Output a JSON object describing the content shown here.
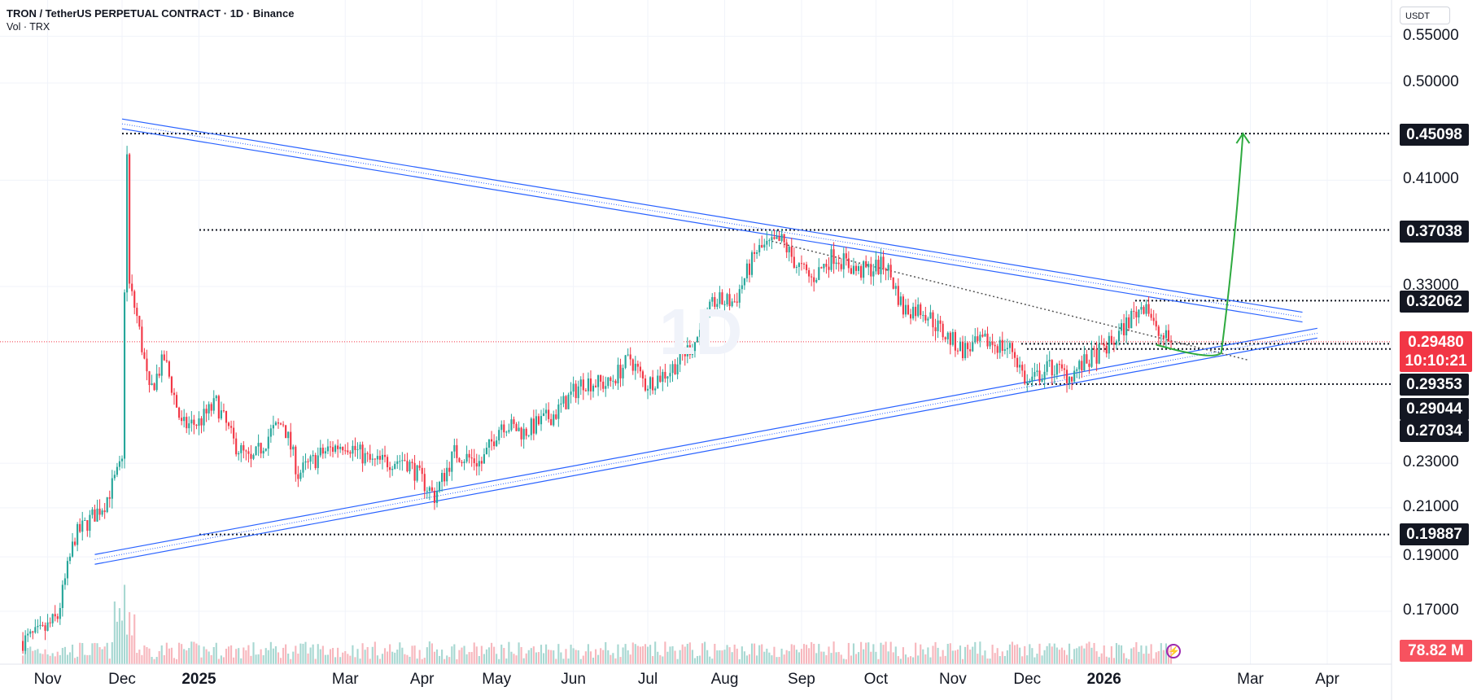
{
  "header": {
    "symbol": "TRON / TetherUS PERPETUAL CONTRACT · 1D · Binance",
    "volume_label": "Vol · TRX"
  },
  "watermark": "1D",
  "currency_button": "USDT",
  "last_price": {
    "value": "0.29480",
    "countdown": "10:10:21"
  },
  "last_volume": "78.82 M",
  "level_labels": [
    "0.45098",
    "0.37038",
    "0.32062",
    "0.29353",
    "0.29044",
    "0.27034",
    "0.19887"
  ],
  "colors": {
    "up": "#26a69a",
    "down": "#f23645",
    "trendline": "#2962ff",
    "arrow": "#2eaa3f",
    "level": "#131722"
  },
  "icons": {
    "alert": "flash-icon"
  },
  "chart_data": {
    "type": "candlestick",
    "yscale": "log",
    "y_ticks": [
      "0.55000",
      "0.50000",
      "0.41000",
      "0.33000",
      "0.23000",
      "0.21000",
      "0.19000",
      "0.17000"
    ],
    "x_ticks": [
      {
        "label": "Nov",
        "date": "2024-11-01"
      },
      {
        "label": "Dec",
        "date": "2024-12-01"
      },
      {
        "label": "2025",
        "date": "2025-01-01",
        "bold": true
      },
      {
        "label": "Mar",
        "date": "2025-03-01"
      },
      {
        "label": "Apr",
        "date": "2025-04-01"
      },
      {
        "label": "May",
        "date": "2025-05-01"
      },
      {
        "label": "Jun",
        "date": "2025-06-01"
      },
      {
        "label": "Jul",
        "date": "2025-07-01"
      },
      {
        "label": "Aug",
        "date": "2025-08-01"
      },
      {
        "label": "Sep",
        "date": "2025-09-01"
      },
      {
        "label": "Oct",
        "date": "2025-10-01"
      },
      {
        "label": "Nov",
        "date": "2025-11-01"
      },
      {
        "label": "Dec",
        "date": "2025-12-01"
      },
      {
        "label": "2026",
        "date": "2026-01-01",
        "bold": true
      },
      {
        "label": "Mar",
        "date": "2026-03-01"
      },
      {
        "label": "Apr",
        "date": "2026-04-01"
      }
    ],
    "price_keypoints": [
      [
        "2024-10-22",
        0.16
      ],
      [
        "2024-10-30",
        0.163
      ],
      [
        "2024-11-05",
        0.168
      ],
      [
        "2024-11-12",
        0.198
      ],
      [
        "2024-11-18",
        0.205
      ],
      [
        "2024-11-24",
        0.212
      ],
      [
        "2024-12-01",
        0.23
      ],
      [
        "2024-12-03",
        0.43
      ],
      [
        "2024-12-04",
        0.33
      ],
      [
        "2024-12-07",
        0.31
      ],
      [
        "2024-12-12",
        0.265
      ],
      [
        "2024-12-18",
        0.285
      ],
      [
        "2024-12-25",
        0.248
      ],
      [
        "2025-01-01",
        0.25
      ],
      [
        "2025-01-08",
        0.26
      ],
      [
        "2025-01-15",
        0.24
      ],
      [
        "2025-01-22",
        0.23
      ],
      [
        "2025-01-30",
        0.245
      ],
      [
        "2025-02-04",
        0.25
      ],
      [
        "2025-02-10",
        0.225
      ],
      [
        "2025-02-20",
        0.235
      ],
      [
        "2025-03-01",
        0.24
      ],
      [
        "2025-03-12",
        0.23
      ],
      [
        "2025-03-25",
        0.232
      ],
      [
        "2025-04-06",
        0.215
      ],
      [
        "2025-04-14",
        0.235
      ],
      [
        "2025-04-25",
        0.23
      ],
      [
        "2025-05-03",
        0.25
      ],
      [
        "2025-05-12",
        0.245
      ],
      [
        "2025-05-25",
        0.255
      ],
      [
        "2025-06-05",
        0.272
      ],
      [
        "2025-06-15",
        0.27
      ],
      [
        "2025-06-24",
        0.285
      ],
      [
        "2025-06-30",
        0.27
      ],
      [
        "2025-07-10",
        0.278
      ],
      [
        "2025-07-20",
        0.295
      ],
      [
        "2025-07-28",
        0.32
      ],
      [
        "2025-08-05",
        0.32
      ],
      [
        "2025-08-14",
        0.355
      ],
      [
        "2025-08-24",
        0.362
      ],
      [
        "2025-08-30",
        0.345
      ],
      [
        "2025-09-05",
        0.335
      ],
      [
        "2025-09-14",
        0.352
      ],
      [
        "2025-09-24",
        0.34
      ],
      [
        "2025-10-05",
        0.345
      ],
      [
        "2025-10-12",
        0.315
      ],
      [
        "2025-10-20",
        0.315
      ],
      [
        "2025-10-28",
        0.3
      ],
      [
        "2025-11-05",
        0.29
      ],
      [
        "2025-11-15",
        0.295
      ],
      [
        "2025-11-25",
        0.29
      ],
      [
        "2025-12-01",
        0.27
      ],
      [
        "2025-12-10",
        0.28
      ],
      [
        "2025-12-18",
        0.275
      ],
      [
        "2025-12-25",
        0.283
      ],
      [
        "2026-01-05",
        0.295
      ],
      [
        "2026-01-12",
        0.31
      ],
      [
        "2026-01-18",
        0.32
      ],
      [
        "2026-01-22",
        0.3
      ],
      [
        "2026-01-28",
        0.2948
      ]
    ],
    "horizontal_levels": [
      0.45098,
      0.37038,
      0.32062,
      0.29353,
      0.29044,
      0.27034,
      0.19887
    ],
    "trendlines": {
      "upper": [
        [
          "2024-12-01",
          0.46
        ],
        [
          "2026-03-22",
          0.31
        ]
      ],
      "lower": [
        [
          "2024-11-20",
          0.189
        ],
        [
          "2026-03-28",
          0.3
        ]
      ],
      "descending_dotted": [
        [
          "2025-08-20",
          0.362
        ],
        [
          "2026-02-28",
          0.284
        ]
      ]
    },
    "projection_arrow": {
      "from": [
        "2026-01-22",
        0.293
      ],
      "to": [
        "2026-02-26",
        0.451
      ]
    },
    "volume_axis_label": "78.82 M"
  }
}
